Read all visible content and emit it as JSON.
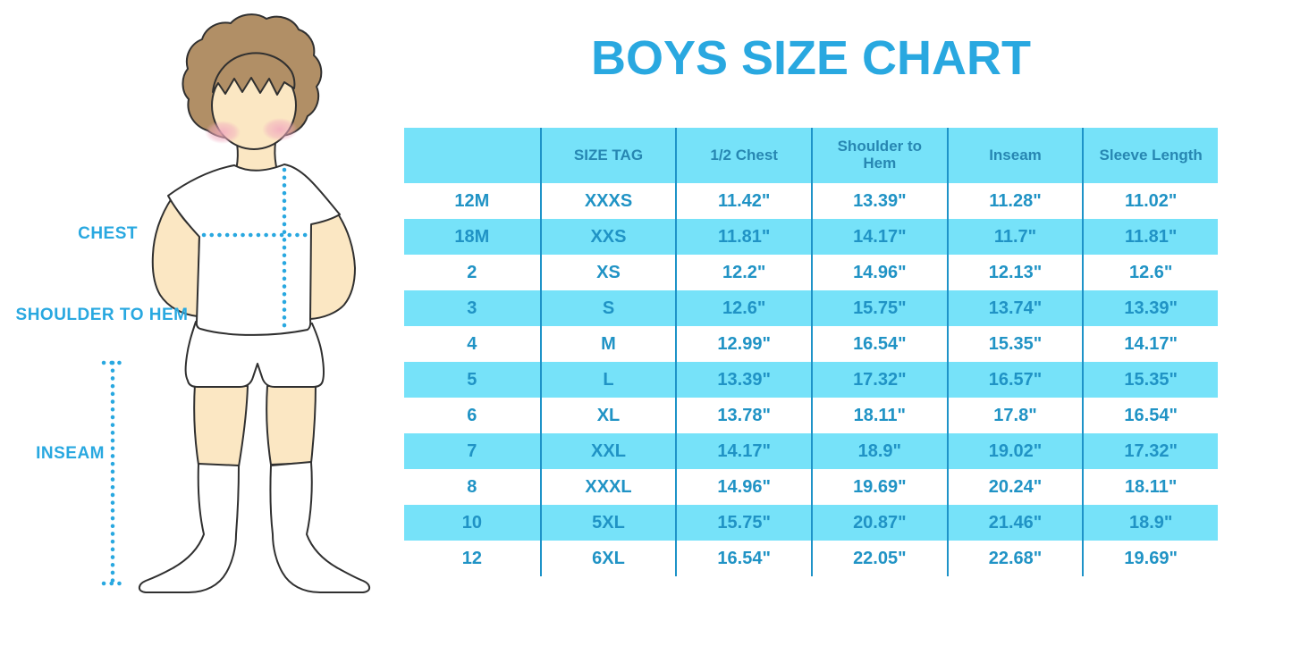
{
  "page_title": "BOYS SIZE CHART",
  "figure": {
    "labels": {
      "chest": "CHEST",
      "shoulder_to_hem": "SHOULDER TO HEM",
      "inseam": "INSEAM"
    }
  },
  "colors": {
    "accent_blue": "#29A8E0",
    "header_text": "#2787B2",
    "cell_text": "#2093C5",
    "cell_cyan": "#76E2F9",
    "divider": "#1E93C8",
    "skin": "#FBE7C3",
    "hair": "#B18F66",
    "blush": "#F1A9BE",
    "outline": "#303030"
  },
  "chart_data": {
    "type": "table",
    "title": "BOYS SIZE CHART",
    "columns": [
      "",
      "SIZE TAG",
      "1/2 Chest",
      "Shoulder to Hem",
      "Inseam",
      "Sleeve Length"
    ],
    "rows": [
      [
        "12M",
        "XXXS",
        "11.42\"",
        "13.39\"",
        "11.28\"",
        "11.02\""
      ],
      [
        "18M",
        "XXS",
        "11.81\"",
        "14.17\"",
        "11.7\"",
        "11.81\""
      ],
      [
        "2",
        "XS",
        "12.2\"",
        "14.96\"",
        "12.13\"",
        "12.6\""
      ],
      [
        "3",
        "S",
        "12.6\"",
        "15.75\"",
        "13.74\"",
        "13.39\""
      ],
      [
        "4",
        "M",
        "12.99\"",
        "16.54\"",
        "15.35\"",
        "14.17\""
      ],
      [
        "5",
        "L",
        "13.39\"",
        "17.32\"",
        "16.57\"",
        "15.35\""
      ],
      [
        "6",
        "XL",
        "13.78\"",
        "18.11\"",
        "17.8\"",
        "16.54\""
      ],
      [
        "7",
        "XXL",
        "14.17\"",
        "18.9\"",
        "19.02\"",
        "17.32\""
      ],
      [
        "8",
        "XXXL",
        "14.96\"",
        "19.69\"",
        "20.24\"",
        "18.11\""
      ],
      [
        "10",
        "5XL",
        "15.75\"",
        "20.87\"",
        "21.46\"",
        "18.9\""
      ],
      [
        "12",
        "6XL",
        "16.54\"",
        "22.05\"",
        "22.68\"",
        "19.69\""
      ]
    ],
    "row_striping": "white/cyan alternating, header cyan",
    "units": "inches"
  }
}
